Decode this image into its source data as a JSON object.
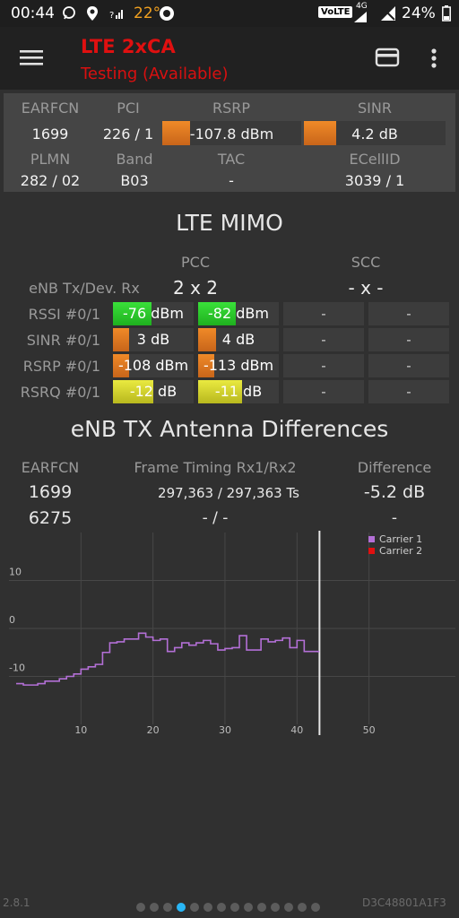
{
  "status_bar": {
    "time": "00:44",
    "temperature": "22°",
    "volte": "VoLTE",
    "network": "4G",
    "battery": "24%"
  },
  "app_bar": {
    "title": "LTE 2xCA",
    "subtitle": "Testing (Available)",
    "menu_icon": "hamburger-menu-icon",
    "card_icon": "sim-card-icon",
    "overflow_icon": "more-vert-icon"
  },
  "cell_info": {
    "headers": [
      "EARFCN",
      "PCI",
      "RSRP",
      "SINR"
    ],
    "earfcn": "1699",
    "pci": "226 / 1",
    "rsrp": "-107.8 dBm",
    "rsrp_fill": 0.2,
    "sinr": "4.2 dB",
    "sinr_fill": 0.23,
    "headers2": [
      "PLMN",
      "Band",
      "TAC",
      "ECellID"
    ],
    "plmn": "282 / 02",
    "band": "B03",
    "tac": "-",
    "ecellid": "3039 / 1"
  },
  "mimo": {
    "title": "LTE MIMO",
    "pcc_label": "PCC",
    "scc_label": "SCC",
    "txrx_label": "eNB Tx/Dev. Rx",
    "pcc_mode": "2 x 2",
    "scc_mode": "- x -",
    "rows": [
      {
        "label": "RSSI #0/1",
        "v0": "-76 dBm",
        "v1": "-82 dBm",
        "f0": 0.48,
        "f1": 0.47,
        "color": "green",
        "s0": "-",
        "s1": "-"
      },
      {
        "label": "SINR #0/1",
        "v0": "3 dB",
        "v1": "4 dB",
        "f0": 0.2,
        "f1": 0.22,
        "color": "orange",
        "s0": "-",
        "s1": "-"
      },
      {
        "label": "RSRP #0/1",
        "v0": "-108 dBm",
        "v1": "-113 dBm",
        "f0": 0.2,
        "f1": 0.2,
        "color": "orange",
        "s0": "-",
        "s1": "-"
      },
      {
        "label": "RSRQ #0/1",
        "v0": "-12 dB",
        "v1": "-11 dB",
        "f0": 0.5,
        "f1": 0.54,
        "color": "yellow",
        "s0": "-",
        "s1": "-"
      }
    ]
  },
  "antenna": {
    "title": "eNB TX Antenna Differences",
    "col_earfcn": "EARFCN",
    "col_timing": "Frame Timing Rx1/Rx2",
    "col_diff": "Difference",
    "rows": [
      {
        "earfcn": "1699",
        "timing": "297,363 / 297,363 Ts",
        "diff": "-5.2 dB"
      },
      {
        "earfcn": "6275",
        "timing": "- / -",
        "diff": "-"
      }
    ]
  },
  "chart_data": {
    "type": "line",
    "title": "",
    "xlabel": "",
    "ylabel": "",
    "xlim": [
      0,
      62
    ],
    "ylim": [
      -20,
      20
    ],
    "x_ticks": [
      10,
      20,
      30,
      40,
      50
    ],
    "y_ticks": [
      10,
      0,
      -10
    ],
    "grid": true,
    "legend": "top-right",
    "current_x": 43,
    "series": [
      {
        "name": "Carrier 1",
        "color": "#b36fd6",
        "x": [
          1,
          2,
          3,
          4,
          5,
          6,
          7,
          8,
          9,
          10,
          11,
          12,
          13,
          14,
          15,
          16,
          17,
          18,
          19,
          20,
          21,
          22,
          23,
          24,
          25,
          26,
          27,
          28,
          29,
          30,
          31,
          32,
          33,
          34,
          35,
          36,
          37,
          38,
          39,
          40,
          41,
          42,
          43
        ],
        "y": [
          -11.5,
          -11.8,
          -11.8,
          -11.5,
          -11,
          -11,
          -10.5,
          -10,
          -9.5,
          -8.5,
          -8,
          -7.5,
          -5,
          -3,
          -2.8,
          -2.2,
          -2.2,
          -1,
          -1.8,
          -2.5,
          -2.2,
          -4.8,
          -4,
          -3,
          -3.5,
          -3,
          -2.5,
          -3.2,
          -4.5,
          -4.2,
          -4,
          -1.5,
          -4.5,
          -4.5,
          -2.2,
          -2.8,
          -2.5,
          -2,
          -4,
          -2.5,
          -4.8,
          -4.8,
          -5
        ]
      },
      {
        "name": "Carrier 2",
        "color": "#e01010",
        "x": [],
        "y": []
      }
    ]
  },
  "footer": {
    "version": "2.8.1",
    "device_id": "D3C48801A1F3",
    "page_count": 14,
    "active_page": 3
  }
}
